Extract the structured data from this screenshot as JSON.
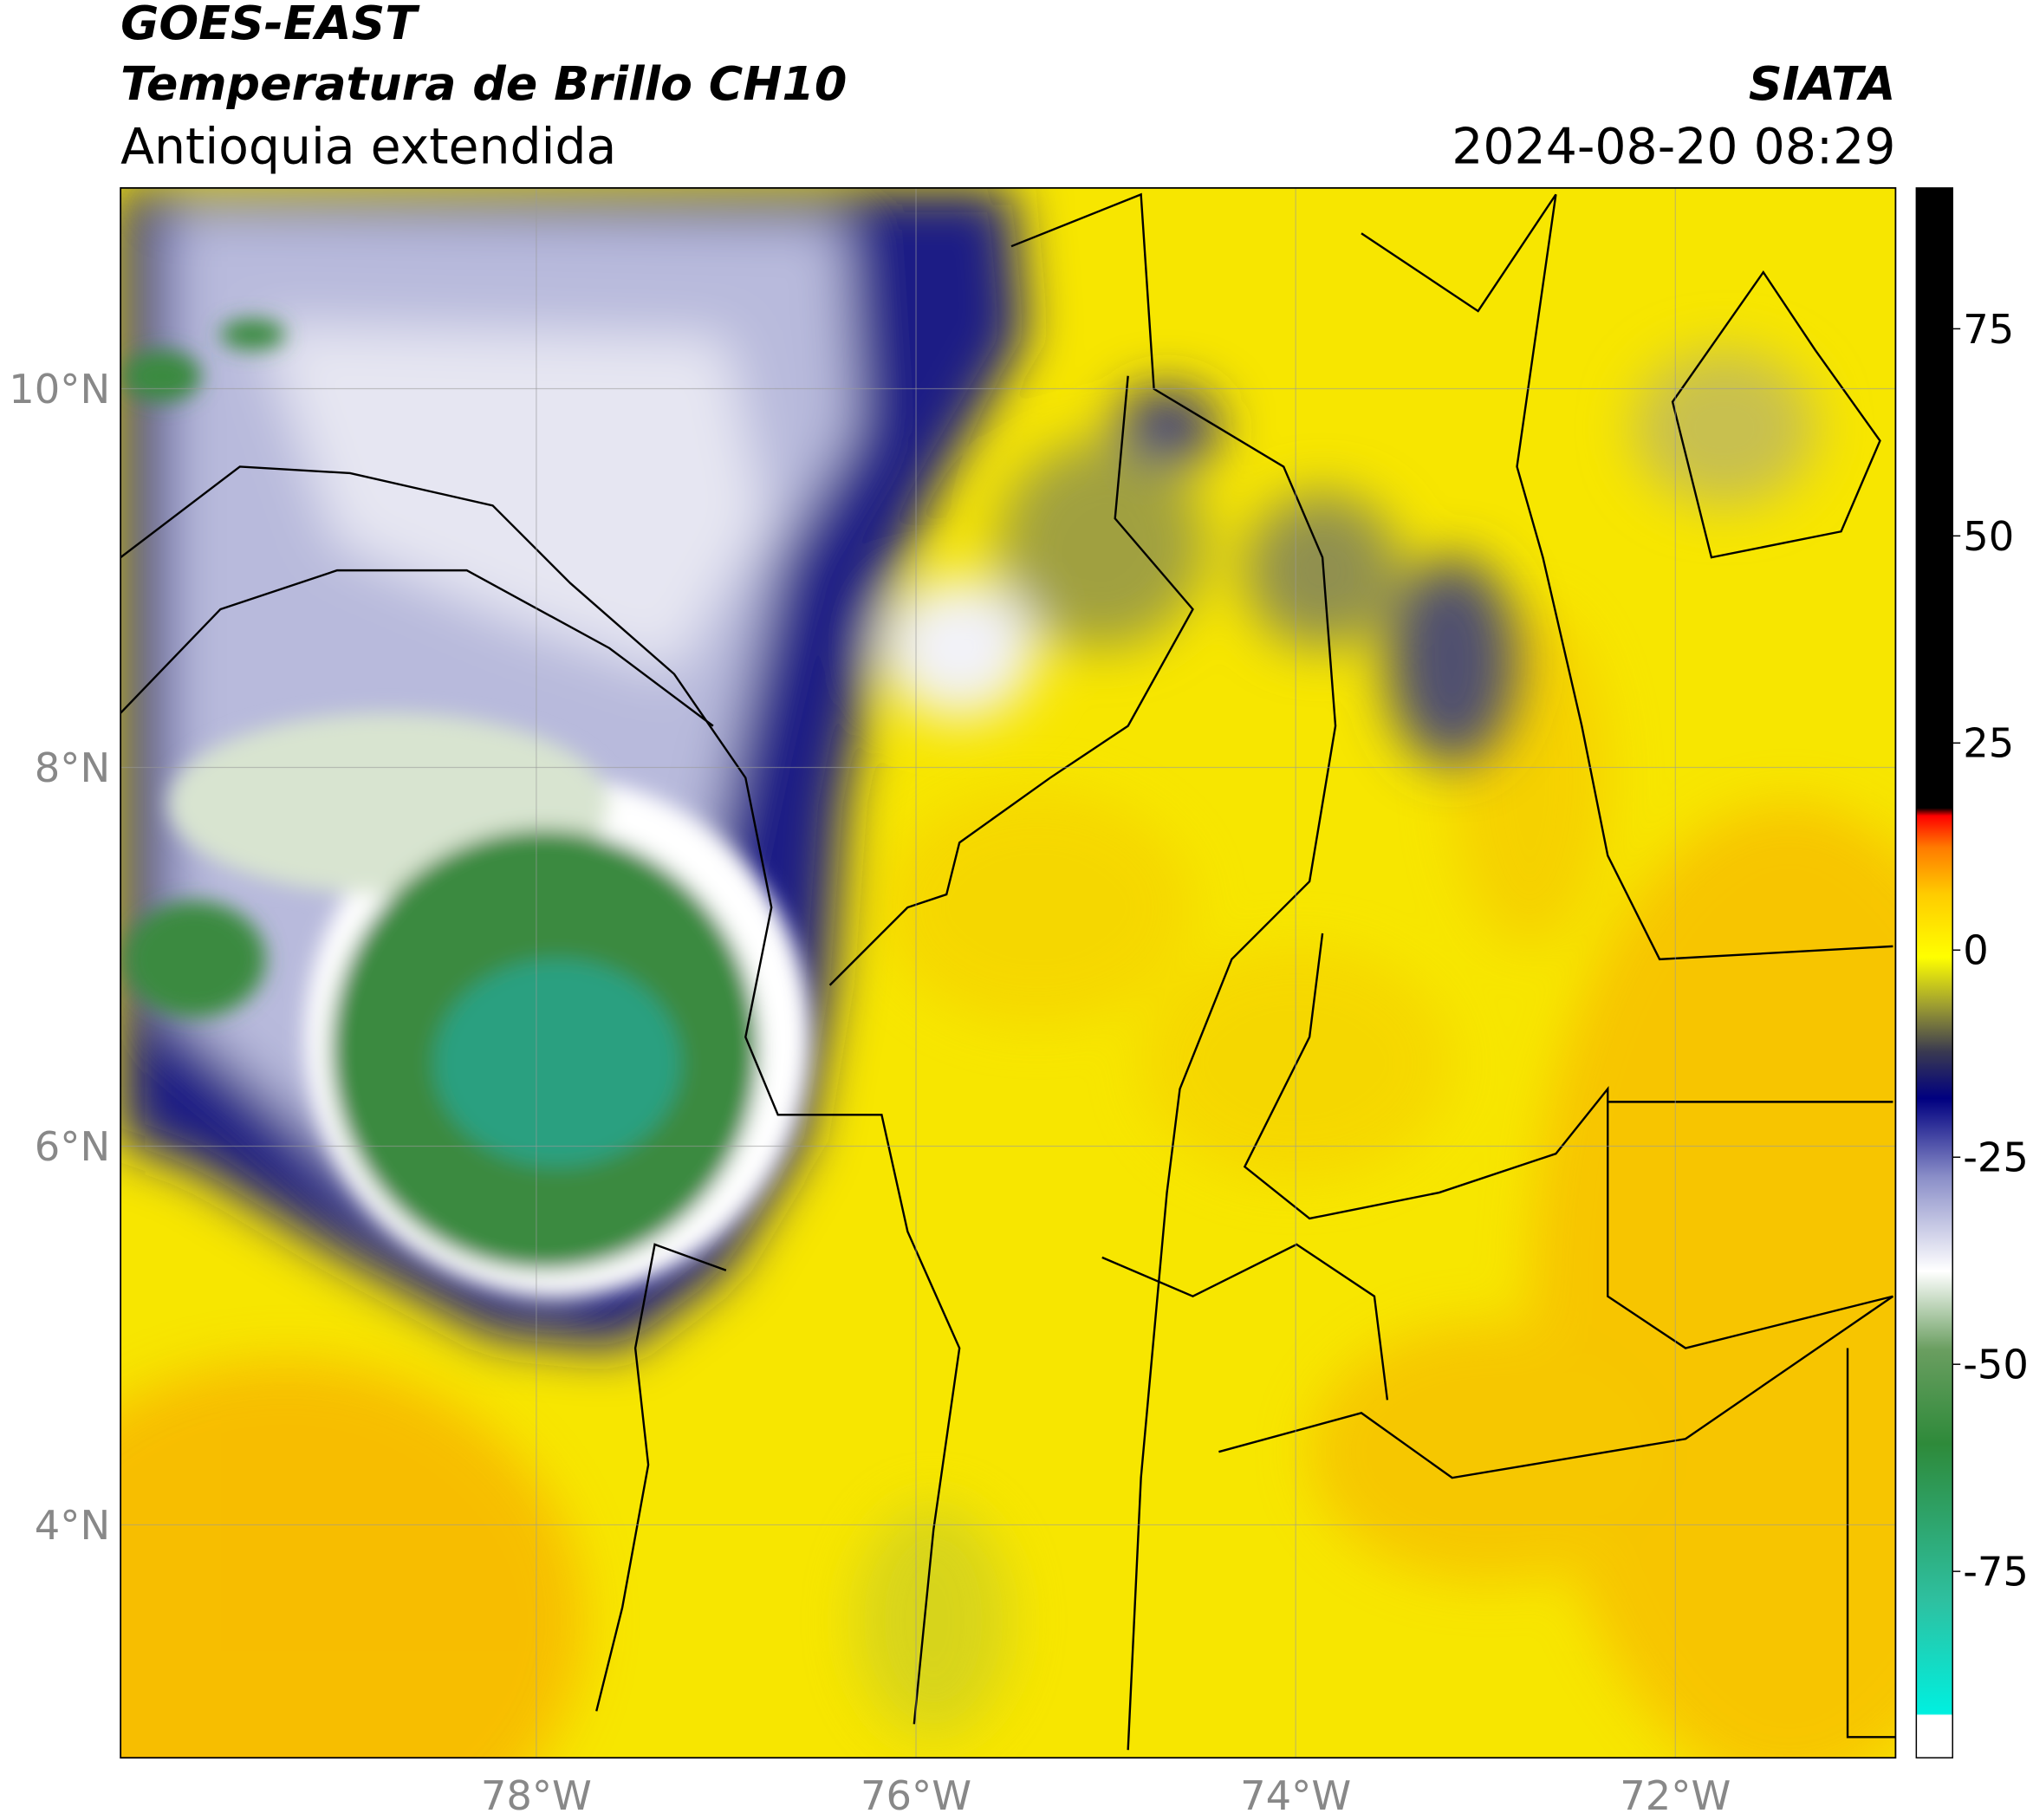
{
  "header": {
    "satellite": "GOES-EAST",
    "product": "Temperatura de Brillo CH10",
    "region": "Antioquia extendida",
    "source": "SIATA",
    "datetime": "2024-08-20 08:29"
  },
  "map": {
    "lonlim": [
      -80.19,
      -70.84
    ],
    "latlim": [
      2.77,
      11.06
    ],
    "lonticks": [
      {
        "value": -78,
        "label": "78°W"
      },
      {
        "value": -76,
        "label": "76°W"
      },
      {
        "value": -74,
        "label": "74°W"
      },
      {
        "value": -72,
        "label": "72°W"
      }
    ],
    "latticks": [
      {
        "value": 10,
        "label": "10°N"
      },
      {
        "value": 8,
        "label": "8°N"
      },
      {
        "value": 6,
        "label": "6°N"
      },
      {
        "value": 4,
        "label": "4°N"
      }
    ],
    "grid": true
  },
  "colorbar": {
    "lim": [
      -97.5,
      92
    ],
    "ticks": [
      75,
      50,
      25,
      0,
      -25,
      -50,
      -75
    ]
  }
}
